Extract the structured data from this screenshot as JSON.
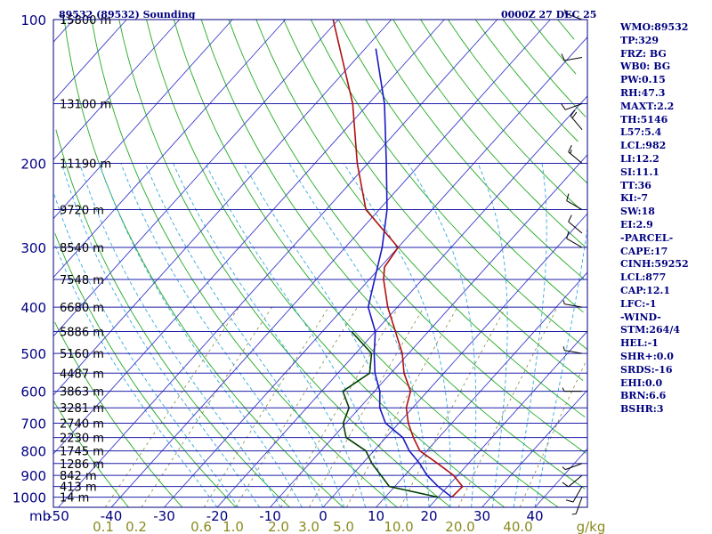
{
  "header": {
    "station": "89532 (89532) Sounding",
    "time": "0000Z 27 DEC 25"
  },
  "stats": [
    "WMO:89532",
    "TP:329",
    "FRZ: BG",
    "WB0: BG",
    "PW:0.15",
    "RH:47.3",
    "MAXT:2.2",
    "TH:5146",
    "L57:5.4",
    "LCL:982",
    "LI:12.2",
    "SI:11.1",
    "TT:36",
    "KI:-7",
    "SW:18",
    "EI:2.9",
    "-PARCEL-",
    "CAPE:17",
    "CINH:59252",
    "LCL:877",
    "CAP:12.1",
    "LFC:-1",
    "-WIND-",
    "STM:264/4",
    "HEL:-1",
    "SHR+:0.0",
    "SRDS:-16",
    "EHI:0.0",
    "BRN:6.6",
    "BSHR:3"
  ],
  "colors": {
    "frame": "#000080",
    "isobar": "#1e1ea8",
    "isotherm": "#3a3acc",
    "dry_adiabat": "#22aa22",
    "moist_adiabat": "#33aadd",
    "mixing_ratio": "#888844",
    "temperature": "#b01010",
    "dewpoint": "#004000",
    "parcel": "#1a1ac0",
    "mixing_label": "#8a8a20",
    "wind": "#000000"
  },
  "chart_data": {
    "type": "skew-t",
    "xlabel": "mb",
    "pressure_ticks": [
      100,
      200,
      300,
      400,
      500,
      600,
      700,
      800,
      900,
      1000
    ],
    "temperature_ticks": [
      -50,
      -40,
      -30,
      -20,
      -10,
      0,
      10,
      20,
      30,
      40
    ],
    "mixing_ratio_ticks": [
      "0.1",
      "0.2",
      "0.6",
      "1.0",
      "2.0",
      "3.0",
      "5.0",
      "10.0",
      "20.0",
      "40.0"
    ],
    "mixing_ratio_unit": "g/kg",
    "height_labels": [
      {
        "p": 100,
        "label": "15800 m"
      },
      {
        "p": 150,
        "label": "13100 m"
      },
      {
        "p": 200,
        "label": "11190 m"
      },
      {
        "p": 250,
        "label": "9720 m"
      },
      {
        "p": 300,
        "label": "8540 m"
      },
      {
        "p": 350,
        "label": "7548 m"
      },
      {
        "p": 400,
        "label": "6680 m"
      },
      {
        "p": 450,
        "label": "5886 m"
      },
      {
        "p": 500,
        "label": "5160 m"
      },
      {
        "p": 550,
        "label": "4487 m"
      },
      {
        "p": 600,
        "label": "3863 m"
      },
      {
        "p": 650,
        "label": "3281 m"
      },
      {
        "p": 700,
        "label": "2740 m"
      },
      {
        "p": 750,
        "label": "2230 m"
      },
      {
        "p": 800,
        "label": "1745 m"
      },
      {
        "p": 850,
        "label": "1286 m"
      },
      {
        "p": 900,
        "label": "842 m"
      },
      {
        "p": 950,
        "label": "413 m"
      },
      {
        "p": 1000,
        "label": "14 m"
      }
    ],
    "temperature_profile": [
      {
        "p": 1000,
        "t": 22.6
      },
      {
        "p": 950,
        "t": 22.8
      },
      {
        "p": 900,
        "t": 19.2
      },
      {
        "p": 850,
        "t": 14.2
      },
      {
        "p": 800,
        "t": 8.7
      },
      {
        "p": 750,
        "t": 5.2
      },
      {
        "p": 700,
        "t": 1.8
      },
      {
        "p": 650,
        "t": -1.2
      },
      {
        "p": 600,
        "t": -3.2
      },
      {
        "p": 550,
        "t": -7.5
      },
      {
        "p": 500,
        "t": -11.2
      },
      {
        "p": 450,
        "t": -16.2
      },
      {
        "p": 400,
        "t": -21.8
      },
      {
        "p": 350,
        "t": -27.3
      },
      {
        "p": 330,
        "t": -29.2
      },
      {
        "p": 300,
        "t": -30.0
      },
      {
        "p": 250,
        "t": -42.5
      },
      {
        "p": 200,
        "t": -52.0
      },
      {
        "p": 150,
        "t": -63.0
      },
      {
        "p": 100,
        "t": -81.0
      }
    ],
    "dewpoint_profile": [
      {
        "p": 1000,
        "t": 20.0
      },
      {
        "p": 950,
        "t": 9.0
      },
      {
        "p": 900,
        "t": 5.5
      },
      {
        "p": 850,
        "t": 1.8
      },
      {
        "p": 800,
        "t": -1.5
      },
      {
        "p": 750,
        "t": -7.5
      },
      {
        "p": 700,
        "t": -10.5
      },
      {
        "p": 650,
        "t": -12.0
      },
      {
        "p": 600,
        "t": -16.0
      },
      {
        "p": 550,
        "t": -14.0
      },
      {
        "p": 500,
        "t": -17.0
      },
      {
        "p": 450,
        "t": -24.5
      }
    ],
    "parcel_profile": [
      {
        "p": 1000,
        "t": 22.6
      },
      {
        "p": 950,
        "t": 18.2
      },
      {
        "p": 900,
        "t": 14.2
      },
      {
        "p": 850,
        "t": 10.8
      },
      {
        "p": 800,
        "t": 6.7
      },
      {
        "p": 750,
        "t": 3.2
      },
      {
        "p": 700,
        "t": -2.5
      },
      {
        "p": 650,
        "t": -6.2
      },
      {
        "p": 600,
        "t": -9.0
      },
      {
        "p": 550,
        "t": -13.0
      },
      {
        "p": 500,
        "t": -16.5
      },
      {
        "p": 450,
        "t": -20.0
      },
      {
        "p": 400,
        "t": -25.5
      },
      {
        "p": 350,
        "t": -29.0
      },
      {
        "p": 300,
        "t": -33.0
      },
      {
        "p": 250,
        "t": -38.5
      },
      {
        "p": 200,
        "t": -46.5
      },
      {
        "p": 150,
        "t": -57.0
      },
      {
        "p": 115,
        "t": -68.0
      }
    ],
    "wind_barbs": [
      {
        "p": 1000,
        "dir": 200,
        "spd": 5
      },
      {
        "p": 950,
        "dir": 210,
        "spd": 10
      },
      {
        "p": 900,
        "dir": 230,
        "spd": 10
      },
      {
        "p": 850,
        "dir": 250,
        "spd": 5
      },
      {
        "p": 600,
        "dir": 270,
        "spd": 5
      },
      {
        "p": 500,
        "dir": 280,
        "spd": 5
      },
      {
        "p": 400,
        "dir": 280,
        "spd": 5
      },
      {
        "p": 300,
        "dir": 300,
        "spd": 10
      },
      {
        "p": 280,
        "dir": 310,
        "spd": 10
      },
      {
        "p": 250,
        "dir": 300,
        "spd": 10
      },
      {
        "p": 200,
        "dir": 310,
        "spd": 15
      },
      {
        "p": 170,
        "dir": 320,
        "spd": 20
      },
      {
        "p": 150,
        "dir": 250,
        "spd": 10
      },
      {
        "p": 120,
        "dir": 260,
        "spd": 10
      },
      {
        "p": 100,
        "dir": 290,
        "spd": 5
      }
    ]
  }
}
